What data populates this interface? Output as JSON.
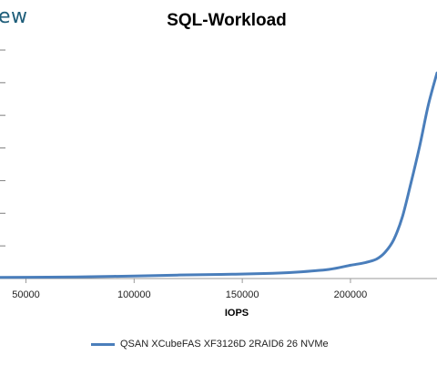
{
  "brand": {
    "text": "ew"
  },
  "chart_data": {
    "type": "line",
    "title": "SQL-Workload",
    "xlabel": "IOPS",
    "ylabel": "",
    "x_ticks": [
      50000,
      100000,
      150000,
      200000
    ],
    "x_tick_labels": [
      "50000",
      "100000",
      "150000",
      "200000"
    ],
    "xlim": [
      38000,
      240000
    ],
    "ylim": [
      0,
      1
    ],
    "grid": "horizontal",
    "legend_position": "bottom",
    "series": [
      {
        "name": "QSAN XCubeFAS XF3126D 2RAID6 26 NVMe",
        "color": "#4a7ebb",
        "points": [
          [
            38000,
            0.005
          ],
          [
            60000,
            0.006
          ],
          [
            80000,
            0.008
          ],
          [
            100000,
            0.011
          ],
          [
            120000,
            0.015
          ],
          [
            140000,
            0.018
          ],
          [
            160000,
            0.022
          ],
          [
            175000,
            0.028
          ],
          [
            190000,
            0.04
          ],
          [
            200000,
            0.058
          ],
          [
            207000,
            0.07
          ],
          [
            212000,
            0.085
          ],
          [
            216000,
            0.115
          ],
          [
            220000,
            0.17
          ],
          [
            224000,
            0.27
          ],
          [
            228000,
            0.42
          ],
          [
            232000,
            0.58
          ],
          [
            236000,
            0.76
          ],
          [
            240000,
            0.9
          ]
        ]
      }
    ]
  }
}
